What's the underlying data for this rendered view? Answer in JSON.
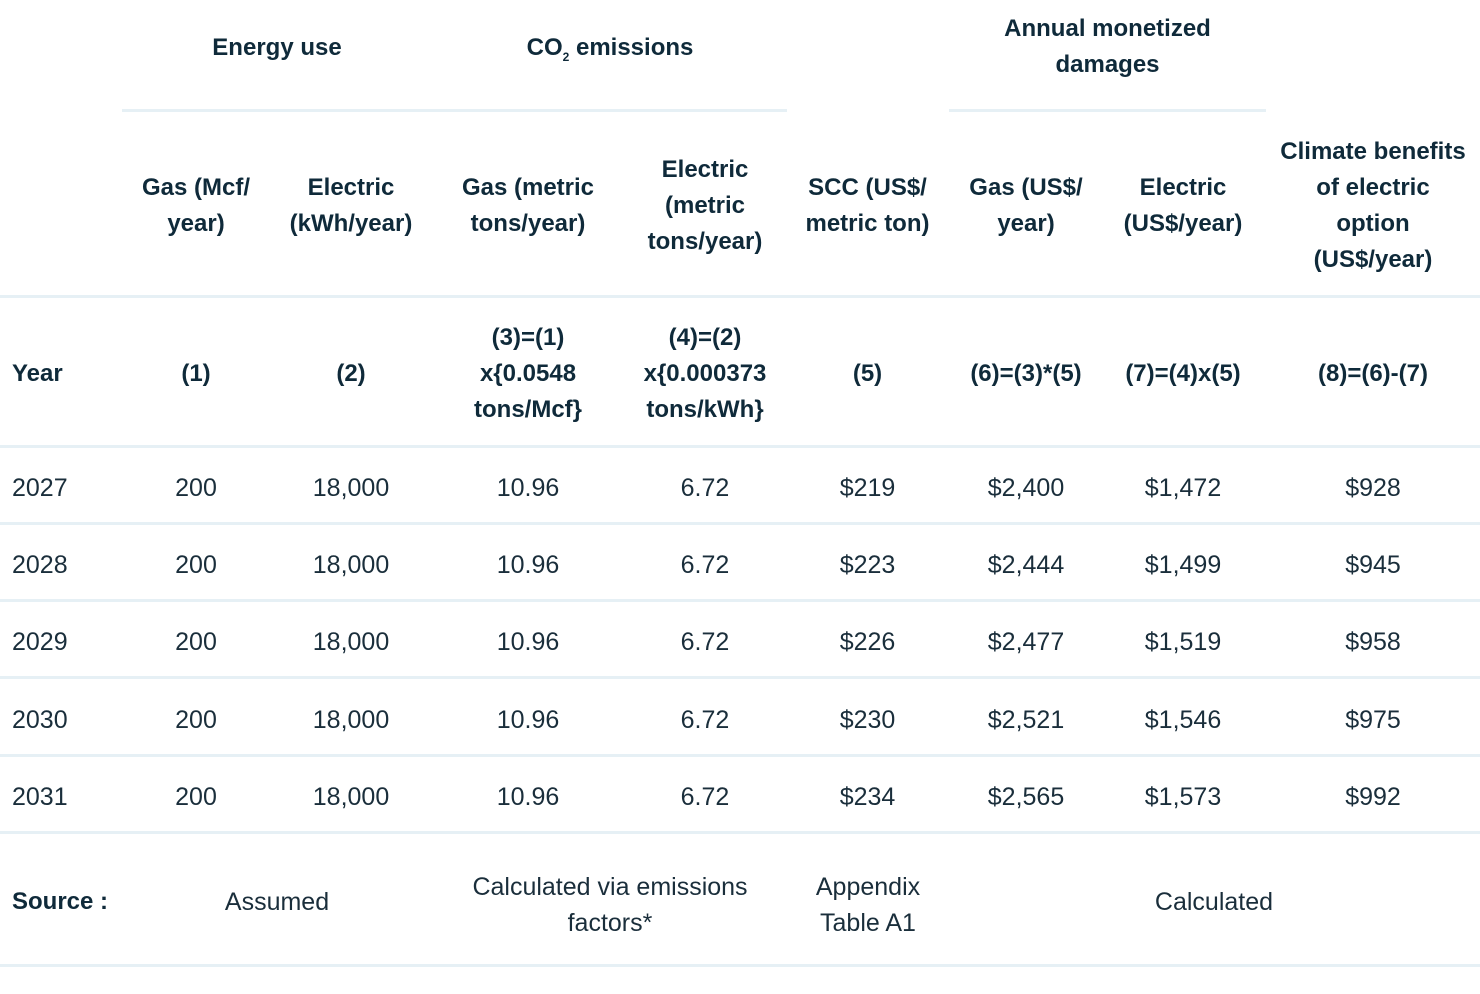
{
  "group_headers": {
    "energy": "Energy use",
    "co2_prefix": "CO",
    "co2_sub": "2",
    "co2_suffix": " emissions",
    "damages": "Annual monetized damages"
  },
  "col_headers": [
    "Gas (Mcf/ year)",
    "Electric (kWh/year)",
    "Gas (metric tons/year)",
    "Electric (metric tons/year)",
    "SCC (US$/ metric ton)",
    "Gas (US$/ year)",
    "Electric (US$/year)",
    "Climate benefits of electric option (US$/year)"
  ],
  "formula_row": {
    "label": "Year",
    "cells": [
      "(1)",
      "(2)",
      "(3)=(1) x{0.0548 tons/Mcf}",
      "(4)=(2) x{0.000373 tons/kWh}",
      "(5)",
      "(6)=(3)*(5)",
      "(7)=(4)x(5)",
      "(8)=(6)-(7)"
    ]
  },
  "rows": [
    [
      "2027",
      "200",
      "18,000",
      "10.96",
      "6.72",
      "$219",
      "$2,400",
      "$1,472",
      "$928"
    ],
    [
      "2028",
      "200",
      "18,000",
      "10.96",
      "6.72",
      "$223",
      "$2,444",
      "$1,499",
      "$945"
    ],
    [
      "2029",
      "200",
      "18,000",
      "10.96",
      "6.72",
      "$226",
      "$2,477",
      "$1,519",
      "$958"
    ],
    [
      "2030",
      "200",
      "18,000",
      "10.96",
      "6.72",
      "$230",
      "$2,521",
      "$1,546",
      "$975"
    ],
    [
      "2031",
      "200",
      "18,000",
      "10.96",
      "6.72",
      "$234",
      "$2,565",
      "$1,573",
      "$992"
    ]
  ],
  "source_row": {
    "label": "Source :",
    "assumed": "Assumed",
    "calc_emissions": "Calculated via emissions factors*",
    "appendix": "Appendix Table A1",
    "calculated": "Calculated"
  },
  "colors": {
    "text": "#0f2a3a",
    "rule": "#e6f0f5"
  }
}
